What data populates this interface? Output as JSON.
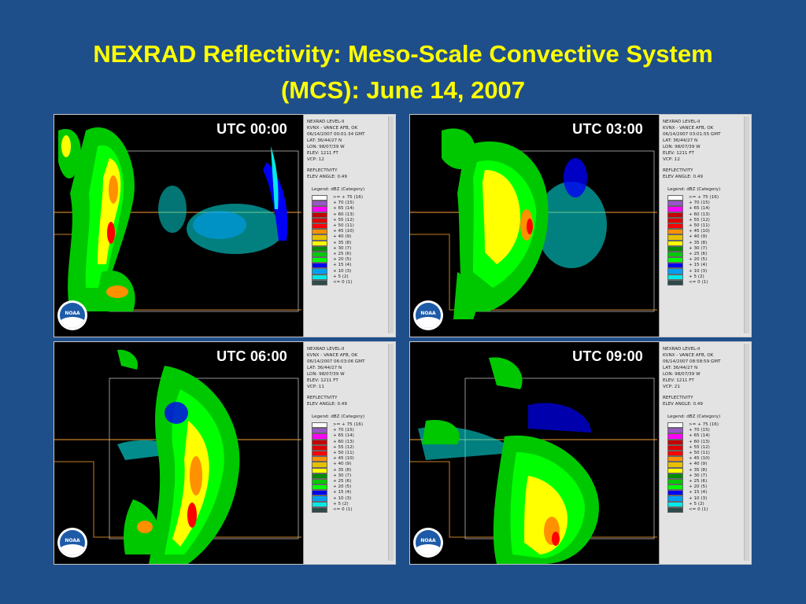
{
  "title": {
    "line1": "NEXRAD Reflectivity: Meso-Scale Convective System",
    "line2": "(MCS): June 14, 2007"
  },
  "logo_text": "NOAA",
  "legend_title": "Legend: dBZ (Category)",
  "legend": [
    {
      "label": ">= + 75 (16)",
      "color": "#ffffff"
    },
    {
      "label": "+ 70 (15)",
      "color": "#9955c9"
    },
    {
      "label": "+ 65 (14)",
      "color": "#ff00ff"
    },
    {
      "label": "+ 60 (13)",
      "color": "#c40000"
    },
    {
      "label": "+ 55 (12)",
      "color": "#e00000"
    },
    {
      "label": "+ 50 (11)",
      "color": "#ff0000"
    },
    {
      "label": "+ 45 (10)",
      "color": "#ff9000"
    },
    {
      "label": "+ 40 (9)",
      "color": "#e7c000"
    },
    {
      "label": "+ 35 (8)",
      "color": "#ffff00"
    },
    {
      "label": "+ 30 (7)",
      "color": "#008e00"
    },
    {
      "label": "+ 25 (6)",
      "color": "#00c800"
    },
    {
      "label": "+ 20 (5)",
      "color": "#00ff00"
    },
    {
      "label": "+ 15 (4)",
      "color": "#0000f6"
    },
    {
      "label": "+ 10 (3)",
      "color": "#019ff4"
    },
    {
      "label": "+ 5 (2)",
      "color": "#04e9e7"
    },
    {
      "label": "<= 0 (1)",
      "color": "#2e4a4a"
    }
  ],
  "panels": [
    {
      "utc": "UTC 00:00",
      "header": [
        "NEXRAD LEVEL-II",
        "KVNX - VANCE AFB, OK",
        "06/14/2007 00:01:34 GMT",
        "LAT: 36/44/27 N",
        "LON: 98/07/39 W",
        "ELEV: 1211 FT",
        "VCP: 12"
      ],
      "refl": [
        "REFLECTIVITY",
        "ELEV ANGLE: 0.49"
      ]
    },
    {
      "utc": "UTC 03:00",
      "header": [
        "NEXRAD LEVEL-II",
        "KVNX - VANCE AFB, OK",
        "06/14/2007 03:01:55 GMT",
        "LAT: 36/44/27 N",
        "LON: 98/07/39 W",
        "ELEV: 1211 FT",
        "VCP: 12"
      ],
      "refl": [
        "REFLECTIVITY",
        "ELEV ANGLE: 0.49"
      ]
    },
    {
      "utc": "UTC 06:00",
      "header": [
        "NEXRAD LEVEL-II",
        "KVNX - VANCE AFB, OK",
        "06/14/2007 06:03:06 GMT",
        "LAT: 36/44/27 N",
        "LON: 98/07/39 W",
        "ELEV: 1211 FT",
        "VCP: 11"
      ],
      "refl": [
        "REFLECTIVITY",
        "ELEV ANGLE: 0.49"
      ]
    },
    {
      "utc": "UTC 09:00",
      "header": [
        "NEXRAD LEVEL-II",
        "KVNX - VANCE AFB, OK",
        "06/14/2007 08:58:59 GMT",
        "LAT: 36/44/27 N",
        "LON: 98/07/39 W",
        "ELEV: 1211 FT",
        "VCP: 21"
      ],
      "refl": [
        "REFLECTIVITY",
        "ELEV ANGLE: 0.49"
      ]
    }
  ]
}
